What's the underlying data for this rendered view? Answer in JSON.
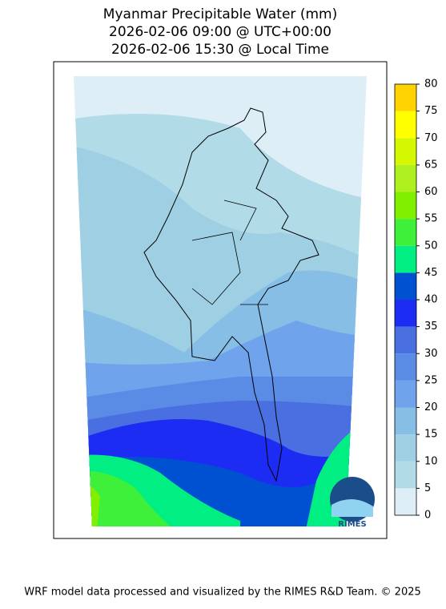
{
  "title": [
    "Myanmar Precipitable Water (mm)",
    "2026-02-06 09:00 @ UTC+00:00",
    "2026-02-06 15:30 @ Local Time"
  ],
  "colorbar": {
    "lim": [
      0,
      80
    ],
    "ticks": [
      0,
      5,
      10,
      15,
      20,
      25,
      30,
      35,
      40,
      45,
      50,
      55,
      60,
      65,
      70,
      75,
      80
    ],
    "colors": [
      "#deeef7",
      "#b2dbe8",
      "#9fcfe3",
      "#86bee6",
      "#6fa3ec",
      "#5a8ce6",
      "#4a6fe0",
      "#1c2cf2",
      "#0050d2",
      "#00ee82",
      "#3ef03a",
      "#80f000",
      "#aef020",
      "#d4f800",
      "#ffff00",
      "#ffd200"
    ]
  },
  "logo": "RIMES",
  "footer": "WRF model data processed and visualized by the RIMES R&D Team. © 2025"
}
